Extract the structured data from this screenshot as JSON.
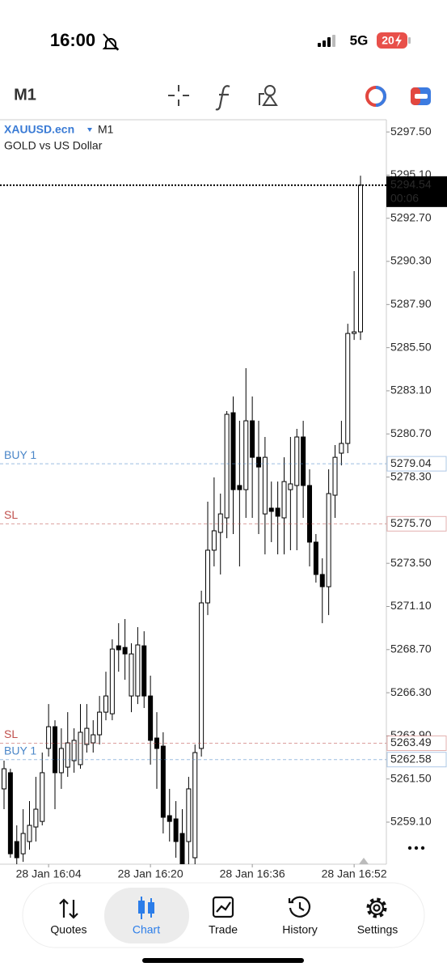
{
  "status_bar": {
    "time": "16:00",
    "network": "5G",
    "battery": "20"
  },
  "toolbar": {
    "timeframe": "M1"
  },
  "chart_data": {
    "type": "candlestick",
    "symbol": "XAUUSD.ecn",
    "timeframe": "M1",
    "description": "GOLD vs US Dollar",
    "categories": [
      null,
      null,
      null,
      null,
      null,
      null,
      null,
      "28 Jan 16:04",
      null,
      null,
      null,
      null,
      null,
      null,
      null,
      null,
      null,
      null,
      null,
      null,
      null,
      null,
      null,
      "28 Jan 16:20",
      null,
      null,
      null,
      null,
      null,
      null,
      null,
      null,
      null,
      null,
      null,
      null,
      null,
      null,
      null,
      "28 Jan 16:36",
      null,
      null,
      null,
      null,
      null,
      null,
      null,
      null,
      null,
      null,
      null,
      null,
      null,
      null,
      null,
      "28 Jan 16:52",
      null
    ],
    "open": [
      5260.95,
      5261.85,
      5258.02,
      5257.34,
      5258.02,
      5258.83,
      5259.14,
      5263.2,
      5264.41,
      5261.85,
      5262.16,
      5262.52,
      5262.3,
      5263.42,
      5263.51,
      5263.96,
      5265.22,
      5265.13,
      5268.91,
      5268.82,
      5266.12,
      5266.12,
      5268.91,
      5266.12,
      5263.78,
      5263.33,
      5259.46,
      5259.28,
      5258.47,
      5258.02,
      5257.12,
      5263.2,
      5271.3,
      5274.23,
      5275.22,
      5276.03,
      5281.88,
      5277.83,
      5277.6,
      5281.43,
      5279.4,
      5276.25,
      5276.57,
      5276.57,
      5276.03,
      5277.6,
      5277.83,
      5280.53,
      5277.83,
      5274.68,
      5272.88,
      5272.2,
      5277.29,
      5279.63,
      5280.17,
      5286.29,
      5286.38
    ],
    "high": [
      5262.52,
      5262.07,
      5258.92,
      5259.82,
      5260.27,
      5261.62,
      5262.97,
      5265.67,
      5264.77,
      5264.32,
      5265.22,
      5264.32,
      5265.67,
      5265.67,
      5264.77,
      5266.12,
      5267.47,
      5269.27,
      5270.17,
      5270.4,
      5269.05,
      5269.95,
      5269.72,
      5267.25,
      5265.22,
      5264.1,
      5260.95,
      5260.27,
      5259.82,
      5261.62,
      5263.42,
      5271.98,
      5276.93,
      5278.28,
      5277.38,
      5281.97,
      5282.78,
      5281.43,
      5284.36,
      5282.78,
      5281.43,
      5280.53,
      5278.05,
      5278.05,
      5279.4,
      5280.53,
      5280.98,
      5281.43,
      5278.73,
      5275.13,
      5273.78,
      5278.73,
      5280.08,
      5281.43,
      5286.83,
      5289.76,
      5295.07
    ],
    "low": [
      5259.82,
      5257.12,
      5256.76,
      5256.89,
      5257.57,
      5258.02,
      5258.92,
      5262.75,
      5259.82,
      5260.95,
      5261.62,
      5261.85,
      5262.07,
      5262.97,
      5262.97,
      5263.42,
      5264.77,
      5264.77,
      5267.47,
      5267.02,
      5265.22,
      5265.67,
      5265.45,
      5262.3,
      5260.95,
      5258.47,
      5258.02,
      5257.12,
      5256.67,
      5256.76,
      5256.76,
      5262.75,
      5270.62,
      5273.33,
      5272.88,
      5274.9,
      5275.13,
      5273.33,
      5276.03,
      5276.03,
      5275.13,
      5274.0,
      5274.68,
      5274.0,
      5274.0,
      5274.23,
      5274.23,
      5276.03,
      5273.33,
      5272.43,
      5270.17,
      5270.62,
      5276.03,
      5278.95,
      5279.63,
      5285.93,
      5285.93
    ],
    "close": [
      5262.07,
      5257.34,
      5257.12,
      5258.47,
      5258.92,
      5259.82,
      5261.85,
      5264.41,
      5261.85,
      5263.2,
      5263.51,
      5263.65,
      5264.1,
      5264.32,
      5263.96,
      5265.22,
      5266.12,
      5268.73,
      5268.69,
      5268.46,
      5268.46,
      5268.96,
      5266.12,
      5263.65,
      5263.2,
      5259.37,
      5259.14,
      5258.02,
      5256.67,
      5260.95,
      5262.97,
      5271.3,
      5274.23,
      5275.31,
      5276.25,
      5281.79,
      5277.6,
      5277.6,
      5281.43,
      5279.4,
      5278.86,
      5279.4,
      5276.39,
      5276.12,
      5278.05,
      5277.92,
      5280.53,
      5277.83,
      5274.68,
      5272.88,
      5272.2,
      5277.38,
      5279.4,
      5280.17,
      5286.29,
      5286.38,
      5294.54
    ],
    "ylim": [
      5256.76,
      5298.18
    ],
    "yticks": [
      {
        "value": 5297.5,
        "label": "5297.50"
      },
      {
        "value": 5295.1,
        "label": "5295.10"
      },
      {
        "value": 5292.7,
        "label": "5292.70"
      },
      {
        "value": 5290.3,
        "label": "5290.30"
      },
      {
        "value": 5287.9,
        "label": "5287.90"
      },
      {
        "value": 5285.5,
        "label": "5285.50"
      },
      {
        "value": 5283.1,
        "label": "5283.10"
      },
      {
        "value": 5280.7,
        "label": "5280.70"
      },
      {
        "value": 5278.3,
        "label": "5278.30"
      },
      {
        "value": 5273.5,
        "label": "5273.50"
      },
      {
        "value": 5271.1,
        "label": "5271.10"
      },
      {
        "value": 5268.7,
        "label": "5268.70"
      },
      {
        "value": 5266.3,
        "label": "5266.30"
      },
      {
        "value": 5263.9,
        "label": "5263.90"
      },
      {
        "value": 5261.5,
        "label": "5261.50"
      },
      {
        "value": 5259.1,
        "label": "5259.10"
      }
    ],
    "levels": [
      {
        "name": "BUY 1",
        "value": 5279.04,
        "label": "5279.04",
        "color": "#4a86c8"
      },
      {
        "name": "SL",
        "value": 5275.7,
        "label": "5275.70",
        "color": "#c0504d"
      },
      {
        "name": "SL",
        "value": 5263.49,
        "label": "5263.49",
        "color": "#c0504d"
      },
      {
        "name": "BUY 1",
        "value": 5262.58,
        "label": "5262.58",
        "color": "#4a86c8"
      }
    ],
    "current_price": {
      "value": 5294.54,
      "label": "5294.54",
      "countdown": "00:06"
    }
  },
  "tab_bar": {
    "tabs": [
      "Quotes",
      "Chart",
      "Trade",
      "History",
      "Settings"
    ],
    "active_tab": 1
  }
}
